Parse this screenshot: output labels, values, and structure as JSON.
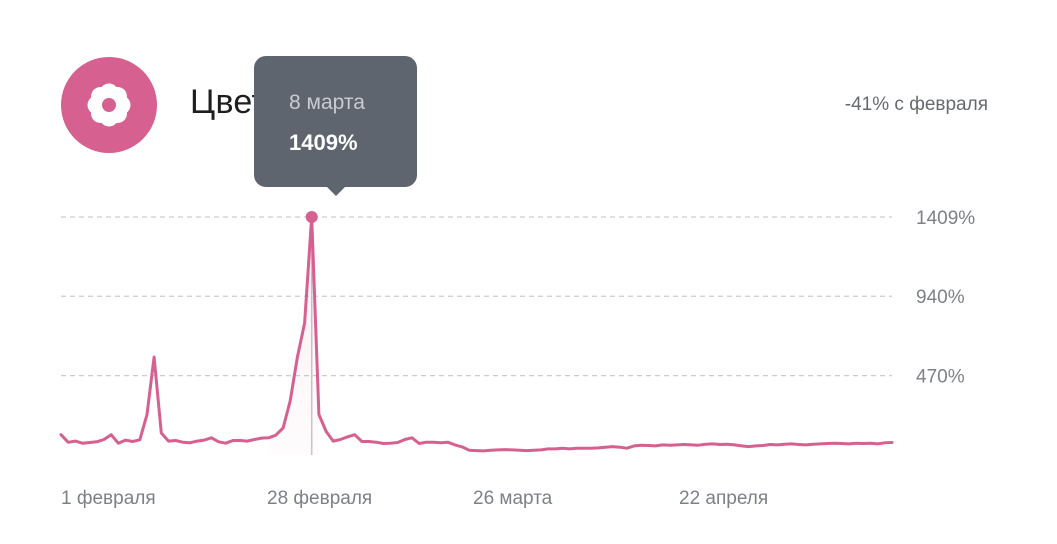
{
  "card": {
    "title": "Цветы",
    "change_text": "-41% с февраля",
    "icon": "flower-icon",
    "accent_color": "#d6608f"
  },
  "tooltip": {
    "date": "8 марта",
    "value": "1409%"
  },
  "chart_data": {
    "type": "line",
    "title": "",
    "xlabel": "",
    "ylabel": "",
    "x_tick_labels": [
      "1 февраля",
      "28 февраля",
      "26 марта",
      "22 апреля"
    ],
    "y_tick_labels": [
      "470%",
      "940%",
      "1409%"
    ],
    "y_ticks": [
      470,
      940,
      1409
    ],
    "ylim": [
      0,
      1409
    ],
    "grid": "horizontal dashed",
    "line_color": "#d6608f",
    "highlighted_point": {
      "x": "8 марта",
      "y": 1409
    },
    "series": [
      {
        "values": [
          120,
          75,
          82,
          70,
          74,
          78,
          92,
          120,
          70,
          88,
          80,
          90,
          240,
          580,
          130,
          82,
          86,
          76,
          72,
          82,
          88,
          102,
          78,
          70,
          86,
          86,
          82,
          92,
          100,
          102,
          118,
          160,
          320,
          580,
          780,
          1409,
          240,
          140,
          82,
          92,
          108,
          120,
          80,
          80,
          76,
          68,
          70,
          74,
          92,
          102,
          68,
          76,
          76,
          72,
          76,
          60,
          48,
          28,
          26,
          24,
          28,
          30,
          32,
          30,
          28,
          26,
          28,
          30,
          36,
          36,
          40,
          36,
          40,
          40,
          40,
          42,
          46,
          50,
          46,
          40,
          54,
          58,
          56,
          54,
          60,
          58,
          60,
          62,
          60,
          58,
          64,
          66,
          62,
          64,
          60,
          54,
          50,
          54,
          56,
          62,
          60,
          64,
          66,
          62,
          60,
          64,
          66,
          68,
          70,
          68,
          66,
          70,
          68,
          70,
          66,
          72,
          74
        ]
      }
    ]
  }
}
